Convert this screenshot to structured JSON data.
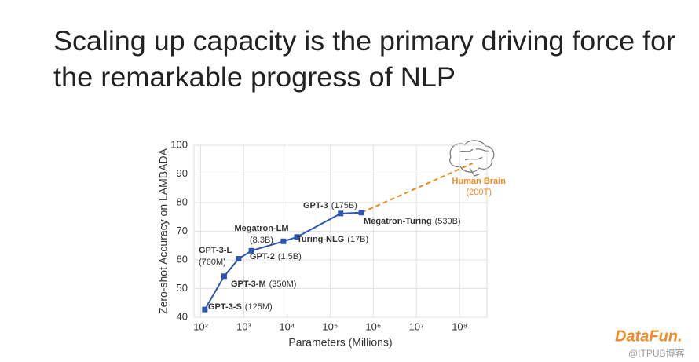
{
  "slide_title": [
    "Scaling up capacity is the primary driving force for",
    "the remarkable progress of NLP"
  ],
  "chart_data": {
    "type": "line",
    "y_label": "Zero-shot Accuracy on LAMBADA",
    "x_label": "Parameters (Millions)",
    "log_x": true,
    "grid": true,
    "color": "#2f55b4",
    "x": [
      125,
      350,
      760,
      1500,
      8300,
      17000,
      175000,
      530000
    ],
    "values": [
      42.7,
      54.3,
      60.4,
      63.2,
      66.5,
      68.0,
      76.2,
      76.5
    ],
    "point_names": [
      "GPT-3-S",
      "GPT-3-M",
      "GPT-3-L",
      "GPT-2",
      "Megatron-LM",
      "Turing-NLG",
      "GPT-3",
      "Megatron-Turing"
    ],
    "point_sizes": [
      "(125M)",
      "(350M)",
      "(760M)",
      "(1.5B)",
      "(8.3B)",
      "(17B)",
      "(175B)",
      "(530B)"
    ],
    "projection": {
      "x": 200000000,
      "value": 93.7,
      "name": "Human Brain",
      "size": "(200T)",
      "color": "#f08a24"
    },
    "xlim": [
      70,
      430000000
    ],
    "xticks": [
      {
        "value": 100,
        "label": "10²"
      },
      {
        "value": 1000,
        "label": "10³"
      },
      {
        "value": 10000,
        "label": "10⁴"
      },
      {
        "value": 100000,
        "label": "10⁵"
      },
      {
        "value": 1000000,
        "label": "10⁶"
      },
      {
        "value": 10000000,
        "label": "10⁷"
      },
      {
        "value": 100000000,
        "label": "10⁸"
      }
    ],
    "ylim": [
      40,
      100
    ],
    "yticks": [
      40,
      50,
      60,
      70,
      80,
      90,
      100
    ]
  },
  "watermark": [
    "DataFun.",
    "@ITPUB博客"
  ]
}
